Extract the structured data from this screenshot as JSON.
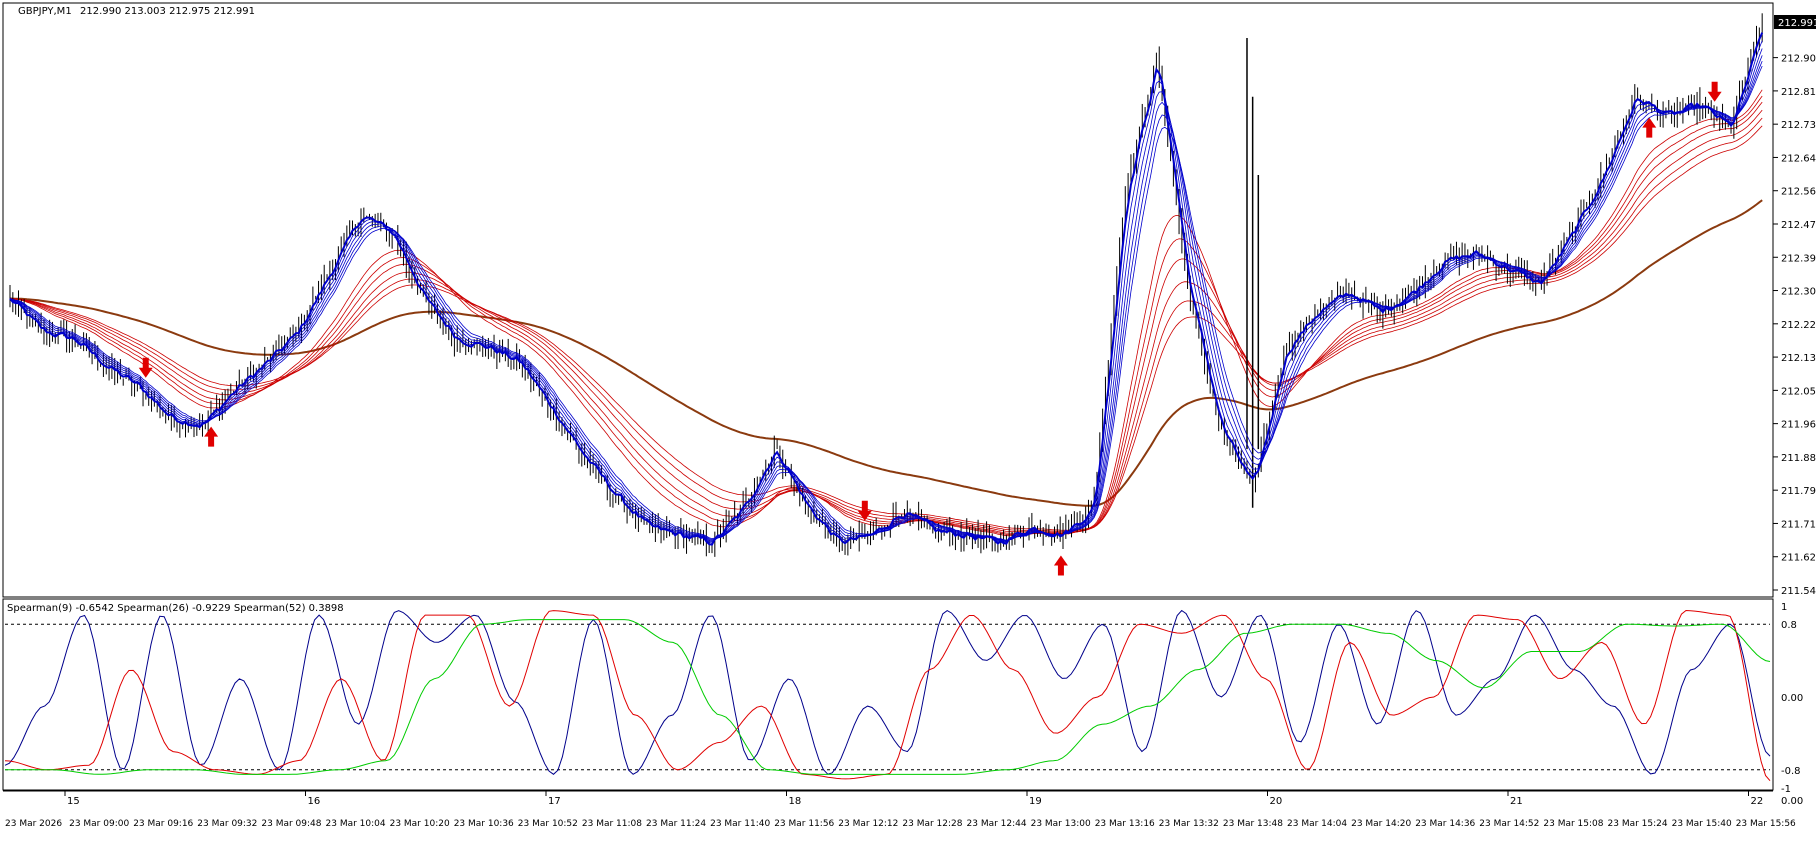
{
  "header": {
    "symbol": "GBPJPY,M1",
    "ohlc": "212.990 213.003 212.975 212.991"
  },
  "price_axis": {
    "ticks": [
      "212.900",
      "212.815",
      "212.730",
      "212.645",
      "212.560",
      "212.475",
      "212.390",
      "212.305",
      "212.220",
      "212.135",
      "212.050",
      "211.965",
      "211.880",
      "211.795",
      "211.710",
      "211.625",
      "211.540"
    ],
    "current_price": "212.991"
  },
  "indicator": {
    "label": "Spearman(9) -0.6542  Spearman(26) -0.9229  Spearman(52) 0.3898",
    "levels": [
      "1",
      "0.8",
      "0.00",
      "-0.8",
      "-1",
      "0.00"
    ]
  },
  "time_axis": {
    "day_labels": [
      "15",
      "16",
      "17",
      "18",
      "19",
      "20",
      "21",
      "22"
    ],
    "time_labels": [
      "23 Mar 2026",
      "23 Mar 09:00",
      "23 Mar 09:16",
      "23 Mar 09:32",
      "23 Mar 09:48",
      "23 Mar 10:04",
      "23 Mar 10:20",
      "23 Mar 10:36",
      "23 Mar 10:52",
      "23 Mar 11:08",
      "23 Mar 11:24",
      "23 Mar 11:40",
      "23 Mar 11:56",
      "23 Mar 12:12",
      "23 Mar 12:28",
      "23 Mar 12:44",
      "23 Mar 13:00",
      "23 Mar 13:16",
      "23 Mar 13:32",
      "23 Mar 13:48",
      "23 Mar 14:04",
      "23 Mar 14:20",
      "23 Mar 14:36",
      "23 Mar 14:52",
      "23 Mar 15:08",
      "23 Mar 15:24",
      "23 Mar 15:40",
      "23 Mar 15:56"
    ]
  },
  "chart_data": [
    {
      "type": "candlestick",
      "title": "GBPJPY,M1",
      "ylim": [
        211.54,
        212.991
      ],
      "x": [
        "23 Mar 2026",
        "23 Mar 09:00",
        "23 Mar 09:16",
        "23 Mar 09:32",
        "23 Mar 09:48",
        "23 Mar 10:04",
        "23 Mar 10:20",
        "23 Mar 10:36",
        "23 Mar 10:52",
        "23 Mar 11:08",
        "23 Mar 11:24",
        "23 Mar 11:40",
        "23 Mar 11:56",
        "23 Mar 12:12",
        "23 Mar 12:28",
        "23 Mar 12:44",
        "23 Mar 13:00",
        "23 Mar 13:16",
        "23 Mar 13:32",
        "23 Mar 13:48",
        "23 Mar 14:04",
        "23 Mar 14:20",
        "23 Mar 14:36",
        "23 Mar 14:52",
        "23 Mar 15:08",
        "23 Mar 15:24",
        "23 Mar 15:40",
        "23 Mar 15:56"
      ],
      "close_path": [
        212.28,
        212.2,
        212.18,
        212.11,
        212.06,
        211.98,
        211.96,
        212.05,
        212.12,
        212.2,
        212.35,
        212.5,
        212.45,
        212.28,
        212.18,
        212.16,
        212.12,
        212.0,
        211.88,
        211.78,
        211.7,
        211.68,
        211.66,
        211.75,
        211.9,
        211.75,
        211.66,
        211.68,
        211.74,
        211.69,
        211.68,
        211.66,
        211.7,
        211.68,
        211.75,
        212.55,
        212.9,
        212.3,
        211.95,
        211.8,
        212.15,
        212.25,
        212.3,
        212.25,
        212.3,
        212.38,
        212.4,
        212.36,
        212.32,
        212.45,
        212.6,
        212.8,
        212.75,
        212.78,
        212.72,
        212.991
      ],
      "fast_ema_color": "#0000CC",
      "slow_ema_color": "#CC0000",
      "long_ma_color": "#8B3A0F",
      "arrow_color": "#E00000",
      "arrows": [
        {
          "x": "23 Mar 09:16",
          "dir": "down"
        },
        {
          "x": "23 Mar 09:32",
          "dir": "up"
        },
        {
          "x": "23 Mar 12:12",
          "dir": "down"
        },
        {
          "x": "23 Mar 13:00",
          "dir": "up"
        },
        {
          "x": "23 Mar 15:24",
          "dir": "up"
        },
        {
          "x": "23 Mar 15:40",
          "dir": "down"
        }
      ]
    },
    {
      "type": "line",
      "title": "Spearman(9) -0.6542  Spearman(26) -0.9229  Spearman(52) 0.3898",
      "ylim": [
        -1,
        1
      ],
      "levels": [
        0.8,
        -0.8
      ],
      "series": [
        {
          "name": "Spearman(9)",
          "color": "#00008B",
          "values": [
            -0.75,
            -0.1,
            0.9,
            -0.8,
            0.9,
            -0.75,
            0.2,
            -0.8,
            0.9,
            -0.3,
            0.95,
            0.6,
            0.9,
            -0.05,
            -0.85,
            0.85,
            -0.85,
            -0.2,
            0.9,
            -0.7,
            0.2,
            -0.85,
            -0.1,
            -0.6,
            0.95,
            0.4,
            0.9,
            0.2,
            0.8,
            -0.6,
            0.95,
            0.0,
            0.9,
            -0.5,
            0.8,
            -0.3,
            0.95,
            -0.2,
            0.2,
            0.9,
            0.3,
            -0.1,
            -0.85,
            0.3,
            0.8,
            -0.65
          ]
        },
        {
          "name": "Spearman(26)",
          "color": "#E00000",
          "values": [
            -0.7,
            -0.8,
            -0.75,
            0.3,
            -0.6,
            -0.8,
            -0.85,
            -0.7,
            0.2,
            -0.7,
            0.9,
            0.9,
            -0.1,
            0.95,
            0.9,
            -0.2,
            -0.8,
            -0.5,
            -0.1,
            -0.85,
            -0.9,
            -0.85,
            0.3,
            0.9,
            0.3,
            -0.4,
            0.0,
            0.8,
            0.7,
            0.9,
            0.2,
            -0.8,
            0.6,
            -0.2,
            0.0,
            0.9,
            0.85,
            0.2,
            0.6,
            -0.3,
            0.95,
            0.9,
            -0.92
          ]
        },
        {
          "name": "Spearman(52)",
          "color": "#00CC00",
          "values": [
            -0.8,
            -0.8,
            -0.85,
            -0.8,
            -0.8,
            -0.85,
            -0.85,
            -0.8,
            -0.7,
            0.2,
            0.8,
            0.85,
            0.85,
            0.85,
            0.6,
            -0.2,
            -0.8,
            -0.85,
            -0.85,
            -0.85,
            -0.85,
            -0.8,
            -0.7,
            -0.3,
            -0.1,
            0.3,
            0.7,
            0.8,
            0.8,
            0.7,
            0.4,
            0.1,
            0.5,
            0.5,
            0.8,
            0.78,
            0.8,
            0.39
          ]
        }
      ]
    }
  ]
}
